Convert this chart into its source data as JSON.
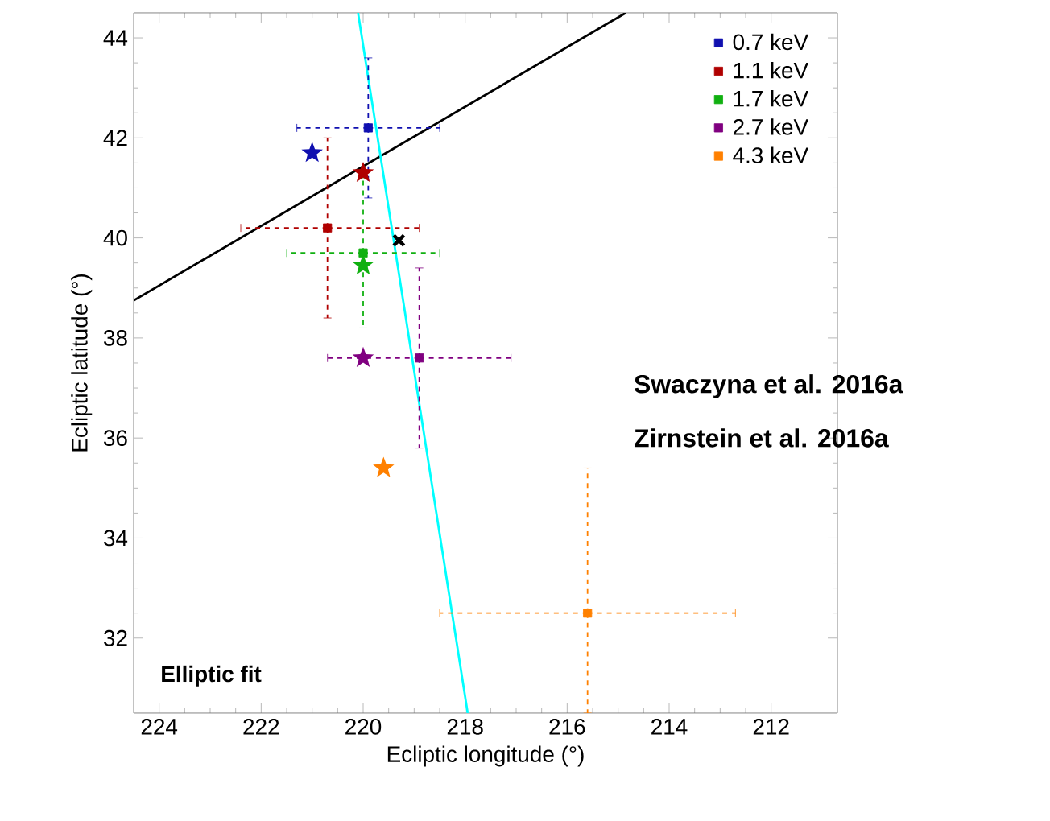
{
  "chart_data": {
    "type": "scatter",
    "xlabel": "Ecliptic longitude (°)",
    "ylabel": "Ecliptic latitude (°)",
    "xlim": [
      224.5,
      210.7
    ],
    "ylim": [
      30.5,
      44.5
    ],
    "xticks": [
      224,
      222,
      220,
      218,
      216,
      214,
      212
    ],
    "yticks": [
      32,
      34,
      36,
      38,
      40,
      42,
      44
    ],
    "legend": "top right",
    "marker": "square",
    "annotations": [
      "Swaczyna et al. 2016a",
      "Zirnstein et al. 2016a",
      "Elliptic fit"
    ],
    "series": [
      {
        "type": "line",
        "marker": "none",
        "color": "#000000",
        "x": [
          224.5,
          214.85
        ],
        "values": [
          38.75,
          44.5
        ]
      },
      {
        "type": "line",
        "marker": "none",
        "color": "#00ffff",
        "x": [
          220.1,
          217.95
        ],
        "values": [
          44.5,
          30.5
        ]
      },
      {
        "name": "0.7 keV",
        "color": "#1010b0",
        "x": [
          219.9
        ],
        "values": [
          42.2
        ],
        "errors": [
          [
            40.8,
            43.6
          ]
        ],
        "xerrors": [
          [
            218.5,
            221.3
          ]
        ]
      },
      {
        "name": "1.1 keV",
        "color": "#b00000",
        "x": [
          220.7
        ],
        "values": [
          40.2
        ],
        "errors": [
          [
            38.4,
            42.0
          ]
        ],
        "xerrors": [
          [
            218.9,
            222.4
          ]
        ]
      },
      {
        "name": "1.7 keV",
        "color": "#10b010",
        "x": [
          220.0
        ],
        "values": [
          39.7
        ],
        "errors": [
          [
            38.2,
            41.2
          ]
        ],
        "xerrors": [
          [
            218.5,
            221.5
          ]
        ]
      },
      {
        "name": "2.7 keV",
        "color": "#800080",
        "x": [
          218.9
        ],
        "values": [
          37.6
        ],
        "errors": [
          [
            35.8,
            39.4
          ]
        ],
        "xerrors": [
          [
            217.1,
            220.7
          ]
        ]
      },
      {
        "name": "4.3 keV",
        "color": "#ff8000",
        "x": [
          215.6
        ],
        "values": [
          32.5
        ],
        "errors": [
          [
            30.5,
            35.4
          ]
        ],
        "xerrors": [
          [
            212.7,
            218.5
          ]
        ]
      },
      {
        "marker": "star",
        "x": [
          221.0,
          220.0,
          220.0,
          220.0,
          219.6
        ],
        "values": [
          41.7,
          41.3,
          39.45,
          37.6,
          35.4
        ],
        "colors": [
          "#1010b0",
          "#b00000",
          "#10b010",
          "#800080",
          "#ff8000"
        ]
      },
      {
        "marker": "cross",
        "color": "#000000",
        "x": [
          219.3
        ],
        "values": [
          39.95
        ]
      }
    ]
  }
}
